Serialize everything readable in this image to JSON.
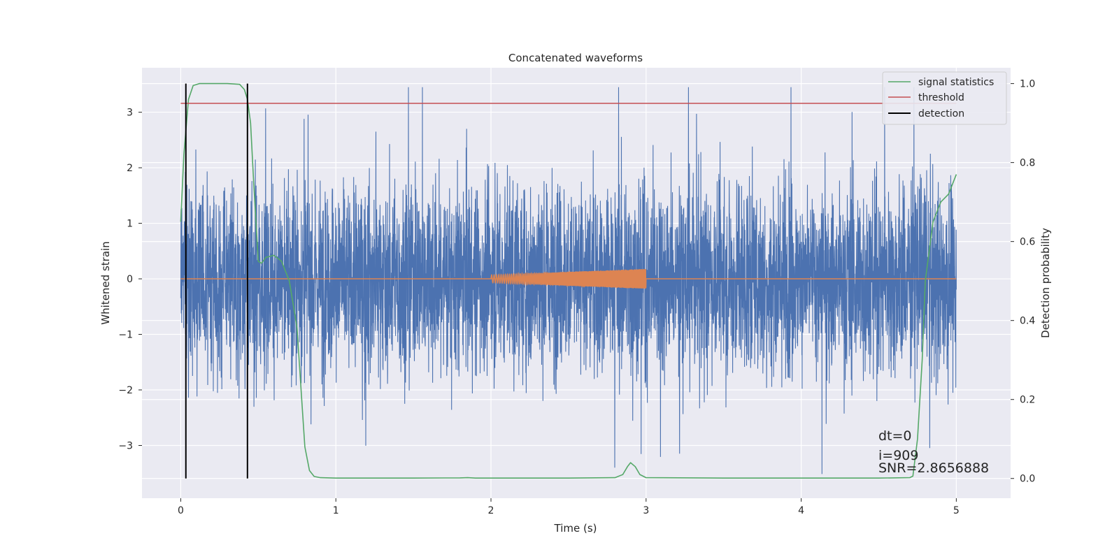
{
  "chart_data": {
    "type": "line",
    "title": "Concatenated waveforms",
    "xlabel": "Time (s)",
    "ylabel": "Whitened strain",
    "ylabel_right": "Detection probability",
    "xlim": [
      -0.25,
      5.35
    ],
    "ylim": [
      -3.95,
      3.8
    ],
    "ylim_right": [
      -0.05,
      1.04
    ],
    "xticks": [
      0,
      1,
      2,
      3,
      4,
      5
    ],
    "yticks": [
      -3,
      -2,
      -1,
      0,
      1,
      2,
      3
    ],
    "yticks_right": [
      0.0,
      0.2,
      0.4,
      0.6,
      0.8,
      1.0
    ],
    "xtick_labels": [
      "0",
      "1",
      "2",
      "3",
      "4",
      "5"
    ],
    "ytick_labels": [
      "−3",
      "−2",
      "−1",
      "0",
      "1",
      "2",
      "3"
    ],
    "ytick_labels_right": [
      "0.0",
      "0.2",
      "0.4",
      "0.6",
      "0.8",
      "1.0"
    ],
    "grid": true,
    "legend_position": "top-right",
    "colors": {
      "background": "#eaeaf2",
      "strain": "#4c72b0",
      "template": "#dd8452",
      "signal_statistics": "#55a868",
      "threshold": "#c44e52",
      "detection": "#000000"
    },
    "series": [
      {
        "name": "",
        "kind": "whitened-strain-noise",
        "x_range": [
          0,
          5
        ],
        "approx_envelope": [
          -3.6,
          3.45
        ]
      },
      {
        "name": "",
        "kind": "injected-template",
        "x_range": [
          2,
          3
        ],
        "amplitude_start": 0.07,
        "amplitude_end": 0.18,
        "zero_line_x_range": [
          0,
          5
        ]
      },
      {
        "name": "signal statistics",
        "axis": "right",
        "x": [
          0.0,
          0.02,
          0.05,
          0.08,
          0.12,
          0.2,
          0.3,
          0.38,
          0.41,
          0.43,
          0.45,
          0.47,
          0.5,
          0.52,
          0.55,
          0.6,
          0.65,
          0.7,
          0.75,
          0.78,
          0.8,
          0.83,
          0.86,
          0.9,
          1.0,
          1.5,
          1.8,
          1.85,
          1.9,
          2.0,
          2.5,
          2.8,
          2.85,
          2.88,
          2.9,
          2.93,
          2.96,
          3.0,
          3.5,
          4.0,
          4.5,
          4.7,
          4.72,
          4.75,
          4.78,
          4.8,
          4.85,
          4.9,
          4.95,
          5.0
        ],
        "y": [
          0.65,
          0.82,
          0.96,
          0.995,
          1.0,
          1.0,
          1.0,
          0.998,
          0.985,
          0.96,
          0.9,
          0.75,
          0.55,
          0.545,
          0.56,
          0.565,
          0.55,
          0.5,
          0.38,
          0.2,
          0.08,
          0.02,
          0.005,
          0.002,
          0.001,
          0.001,
          0.0015,
          0.002,
          0.001,
          0.001,
          0.001,
          0.002,
          0.01,
          0.03,
          0.04,
          0.03,
          0.01,
          0.002,
          0.001,
          0.001,
          0.001,
          0.002,
          0.006,
          0.1,
          0.3,
          0.5,
          0.65,
          0.7,
          0.72,
          0.77
        ]
      },
      {
        "name": "threshold",
        "axis": "right",
        "x": [
          0,
          5
        ],
        "y": [
          0.95,
          0.95
        ]
      },
      {
        "name": "detection",
        "axis": "right",
        "x": [
          0.033,
          0.43
        ],
        "y_range": [
          0.0,
          1.0
        ]
      }
    ],
    "annotations": [
      "dt=0",
      "i=909",
      "SNR=2.8656888"
    ]
  }
}
